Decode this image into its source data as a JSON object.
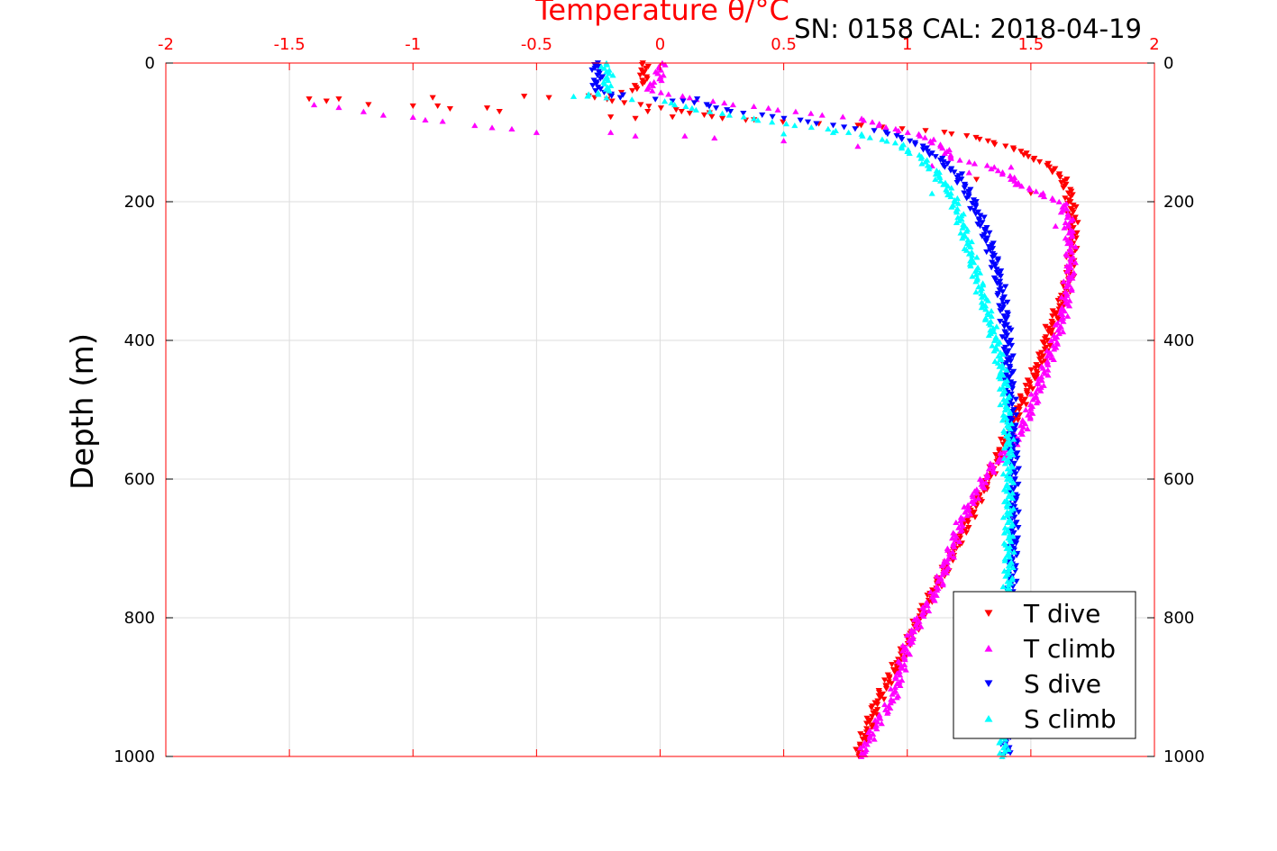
{
  "chart_data": {
    "type": "scatter",
    "title": "SN: 0158  CAL: 2018-04-19",
    "xlabel_top": "Temperature θ/°C",
    "ylabel": "Depth (m)",
    "xlim": [
      -2,
      2
    ],
    "ylim": [
      0,
      1000
    ],
    "y_reversed": true,
    "grid": true,
    "legend_position": "bottom-right",
    "x_ticks": [
      "-2",
      "-1.5",
      "-1",
      "-0.5",
      "0",
      "0.5",
      "1",
      "1.5",
      "2"
    ],
    "y_ticks": [
      "0",
      "200",
      "400",
      "600",
      "800",
      "1000"
    ],
    "series": [
      {
        "name": "T dive",
        "color": "#ff0000",
        "marker": "triangle-down",
        "profile": [
          [
            -0.07,
            0
          ],
          [
            -0.06,
            20
          ],
          [
            -0.1,
            40
          ],
          [
            -0.3,
            48
          ],
          [
            0.3,
            82
          ],
          [
            0.8,
            90
          ],
          [
            1.0,
            95
          ],
          [
            1.15,
            100
          ],
          [
            1.3,
            110
          ],
          [
            1.4,
            120
          ],
          [
            1.5,
            135
          ],
          [
            1.6,
            155
          ],
          [
            1.65,
            180
          ],
          [
            1.67,
            220
          ],
          [
            1.67,
            260
          ],
          [
            1.66,
            300
          ],
          [
            1.63,
            340
          ],
          [
            1.58,
            380
          ],
          [
            1.55,
            420
          ],
          [
            1.5,
            460
          ],
          [
            1.45,
            500
          ],
          [
            1.38,
            560
          ],
          [
            1.3,
            620
          ],
          [
            1.22,
            680
          ],
          [
            1.14,
            740
          ],
          [
            1.05,
            800
          ],
          [
            0.97,
            860
          ],
          [
            0.88,
            920
          ],
          [
            0.84,
            960
          ],
          [
            0.8,
            1000
          ]
        ],
        "scatter": [
          [
            -1.42,
            52
          ],
          [
            -1.35,
            55
          ],
          [
            -1.3,
            52
          ],
          [
            -1.18,
            60
          ],
          [
            -1.0,
            62
          ],
          [
            -0.92,
            50
          ],
          [
            -0.9,
            62
          ],
          [
            -0.85,
            66
          ],
          [
            -0.7,
            65
          ],
          [
            -0.65,
            70
          ],
          [
            -0.55,
            48
          ],
          [
            -0.45,
            50
          ],
          [
            -0.2,
            78
          ],
          [
            -0.1,
            80
          ],
          [
            -0.05,
            70
          ],
          [
            0.05,
            78
          ],
          [
            0.2,
            72
          ],
          [
            0.38,
            82
          ],
          [
            0.8,
            90
          ],
          [
            1.28,
            168
          ],
          [
            1.5,
            188
          ]
        ]
      },
      {
        "name": "T climb",
        "color": "#ff00ff",
        "marker": "triangle-up",
        "profile": [
          [
            0.0,
            0
          ],
          [
            0.0,
            20
          ],
          [
            -0.05,
            40
          ],
          [
            0.3,
            60
          ],
          [
            0.8,
            80
          ],
          [
            1.1,
            110
          ],
          [
            1.2,
            140
          ],
          [
            1.35,
            150
          ],
          [
            1.48,
            180
          ],
          [
            1.62,
            200
          ],
          [
            1.65,
            220
          ],
          [
            1.66,
            260
          ],
          [
            1.66,
            300
          ],
          [
            1.64,
            350
          ],
          [
            1.6,
            400
          ],
          [
            1.55,
            450
          ],
          [
            1.5,
            500
          ],
          [
            1.45,
            540
          ],
          [
            1.35,
            580
          ],
          [
            1.28,
            620
          ],
          [
            1.22,
            660
          ],
          [
            1.18,
            700
          ],
          [
            1.12,
            760
          ],
          [
            1.05,
            800
          ],
          [
            1.0,
            840
          ],
          [
            0.97,
            880
          ],
          [
            0.94,
            920
          ],
          [
            0.88,
            950
          ],
          [
            0.81,
            1000
          ]
        ],
        "scatter": [
          [
            -1.4,
            60
          ],
          [
            -1.3,
            64
          ],
          [
            -1.2,
            70
          ],
          [
            -1.12,
            75
          ],
          [
            -1.0,
            78
          ],
          [
            -0.95,
            82
          ],
          [
            -0.88,
            84
          ],
          [
            -0.75,
            90
          ],
          [
            -0.68,
            93
          ],
          [
            -0.6,
            95
          ],
          [
            -0.5,
            100
          ],
          [
            -0.2,
            100
          ],
          [
            -0.1,
            105
          ],
          [
            0.1,
            105
          ],
          [
            0.22,
            108
          ],
          [
            0.5,
            112
          ],
          [
            0.8,
            120
          ],
          [
            1.1,
            148
          ],
          [
            1.25,
            158
          ],
          [
            1.42,
            150
          ],
          [
            1.45,
            175
          ],
          [
            1.6,
            235
          ]
        ]
      },
      {
        "name": "S dive",
        "color": "#0000ff",
        "marker": "triangle-down",
        "profile": [
          [
            -0.26,
            0
          ],
          [
            -0.25,
            20
          ],
          [
            -0.26,
            40
          ],
          [
            -0.15,
            50
          ],
          [
            0.1,
            55
          ],
          [
            0.3,
            70
          ],
          [
            0.5,
            80
          ],
          [
            0.7,
            90
          ],
          [
            0.9,
            100
          ],
          [
            1.0,
            110
          ],
          [
            1.1,
            130
          ],
          [
            1.2,
            160
          ],
          [
            1.25,
            190
          ],
          [
            1.3,
            230
          ],
          [
            1.35,
            280
          ],
          [
            1.38,
            330
          ],
          [
            1.4,
            380
          ],
          [
            1.41,
            430
          ],
          [
            1.42,
            500
          ],
          [
            1.43,
            560
          ],
          [
            1.43,
            600
          ],
          [
            1.43,
            650
          ],
          [
            1.43,
            700
          ],
          [
            1.42,
            750
          ],
          [
            1.42,
            800
          ],
          [
            1.41,
            850
          ],
          [
            1.41,
            900
          ],
          [
            1.4,
            950
          ],
          [
            1.4,
            1000
          ]
        ],
        "scatter": [
          [
            -0.15,
            46
          ],
          [
            0.05,
            55
          ],
          [
            0.15,
            52
          ]
        ]
      },
      {
        "name": "S climb",
        "color": "#00ffff",
        "marker": "triangle-up",
        "profile": [
          [
            -0.22,
            0
          ],
          [
            -0.21,
            20
          ],
          [
            -0.22,
            40
          ],
          [
            -0.3,
            48
          ],
          [
            0.0,
            55
          ],
          [
            0.2,
            70
          ],
          [
            0.4,
            82
          ],
          [
            0.6,
            92
          ],
          [
            0.8,
            102
          ],
          [
            0.95,
            115
          ],
          [
            1.05,
            135
          ],
          [
            1.12,
            160
          ],
          [
            1.18,
            190
          ],
          [
            1.22,
            230
          ],
          [
            1.26,
            280
          ],
          [
            1.3,
            330
          ],
          [
            1.34,
            380
          ],
          [
            1.37,
            420
          ],
          [
            1.39,
            460
          ],
          [
            1.4,
            500
          ],
          [
            1.41,
            550
          ],
          [
            1.41,
            600
          ],
          [
            1.41,
            650
          ],
          [
            1.41,
            700
          ],
          [
            1.41,
            750
          ],
          [
            1.41,
            800
          ],
          [
            1.4,
            850
          ],
          [
            1.4,
            900
          ],
          [
            1.39,
            950
          ],
          [
            1.39,
            1000
          ]
        ],
        "scatter": [
          [
            -0.35,
            48
          ],
          [
            -0.25,
            45
          ],
          [
            0.5,
            102
          ],
          [
            0.7,
            100
          ],
          [
            1.1,
            188
          ],
          [
            1.15,
            175
          ]
        ]
      }
    ]
  }
}
